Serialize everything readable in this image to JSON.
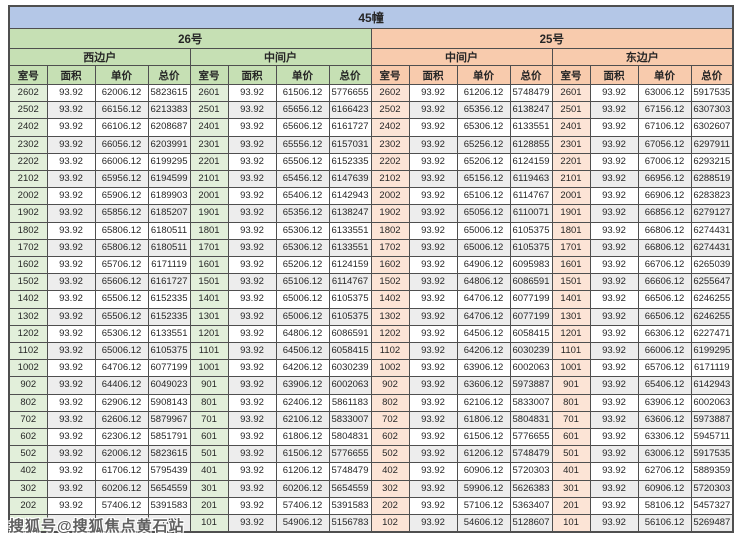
{
  "page": {
    "title": "45幢"
  },
  "watermark": {
    "text": "搜狐号@搜狐焦点黄石站"
  },
  "colors": {
    "title_bg": "#b4c7e7",
    "green_header": "#c6e0b4",
    "peach_header": "#f8cbad",
    "green_room": "#e2efda",
    "peach_room": "#fce4d6",
    "zebra": "#ededed",
    "border": "#4f4f4f"
  },
  "table": {
    "columns": [
      "室号",
      "面积",
      "单价",
      "总价"
    ],
    "groups": [
      {
        "label": "26号",
        "header_bg": "#c6e0b4",
        "room_bg": "#e2efda",
        "units": [
          {
            "label": "西边户",
            "rows": [
              [
                "2602",
                "93.92",
                "62006.12",
                "5823615"
              ],
              [
                "2502",
                "93.92",
                "66156.12",
                "6213383"
              ],
              [
                "2402",
                "93.92",
                "66106.12",
                "6208687"
              ],
              [
                "2302",
                "93.92",
                "66056.12",
                "6203991"
              ],
              [
                "2202",
                "93.92",
                "66006.12",
                "6199295"
              ],
              [
                "2102",
                "93.92",
                "65956.12",
                "6194599"
              ],
              [
                "2002",
                "93.92",
                "65906.12",
                "6189903"
              ],
              [
                "1902",
                "93.92",
                "65856.12",
                "6185207"
              ],
              [
                "1802",
                "93.92",
                "65806.12",
                "6180511"
              ],
              [
                "1702",
                "93.92",
                "65806.12",
                "6180511"
              ],
              [
                "1602",
                "93.92",
                "65706.12",
                "6171119"
              ],
              [
                "1502",
                "93.92",
                "65606.12",
                "6161727"
              ],
              [
                "1402",
                "93.92",
                "65506.12",
                "6152335"
              ],
              [
                "1302",
                "93.92",
                "65506.12",
                "6152335"
              ],
              [
                "1202",
                "93.92",
                "65306.12",
                "6133551"
              ],
              [
                "1102",
                "93.92",
                "65006.12",
                "6105375"
              ],
              [
                "1002",
                "93.92",
                "64706.12",
                "6077199"
              ],
              [
                "902",
                "93.92",
                "64406.12",
                "6049023"
              ],
              [
                "802",
                "93.92",
                "62906.12",
                "5908143"
              ],
              [
                "702",
                "93.92",
                "62606.12",
                "5879967"
              ],
              [
                "602",
                "93.92",
                "62306.12",
                "5851791"
              ],
              [
                "502",
                "93.92",
                "62006.12",
                "5823615"
              ],
              [
                "402",
                "93.92",
                "61706.12",
                "5795439"
              ],
              [
                "302",
                "93.92",
                "60206.12",
                "5654559"
              ],
              [
                "202",
                "93.92",
                "57406.12",
                "5391583"
              ],
              [
                "",
                "",
                "",
                "743"
              ]
            ]
          },
          {
            "label": "中间户",
            "rows": [
              [
                "2601",
                "93.92",
                "61506.12",
                "5776655"
              ],
              [
                "2501",
                "93.92",
                "65656.12",
                "6166423"
              ],
              [
                "2401",
                "93.92",
                "65606.12",
                "6161727"
              ],
              [
                "2301",
                "93.92",
                "65556.12",
                "6157031"
              ],
              [
                "2201",
                "93.92",
                "65506.12",
                "6152335"
              ],
              [
                "2101",
                "93.92",
                "65456.12",
                "6147639"
              ],
              [
                "2001",
                "93.92",
                "65406.12",
                "6142943"
              ],
              [
                "1901",
                "93.92",
                "65356.12",
                "6138247"
              ],
              [
                "1801",
                "93.92",
                "65306.12",
                "6133551"
              ],
              [
                "1701",
                "93.92",
                "65306.12",
                "6133551"
              ],
              [
                "1601",
                "93.92",
                "65206.12",
                "6124159"
              ],
              [
                "1501",
                "93.92",
                "65106.12",
                "6114767"
              ],
              [
                "1401",
                "93.92",
                "65006.12",
                "6105375"
              ],
              [
                "1301",
                "93.92",
                "65006.12",
                "6105375"
              ],
              [
                "1201",
                "93.92",
                "64806.12",
                "6086591"
              ],
              [
                "1101",
                "93.92",
                "64506.12",
                "6058415"
              ],
              [
                "1001",
                "93.92",
                "64206.12",
                "6030239"
              ],
              [
                "901",
                "93.92",
                "63906.12",
                "6002063"
              ],
              [
                "801",
                "93.92",
                "62406.12",
                "5861183"
              ],
              [
                "701",
                "93.92",
                "62106.12",
                "5833007"
              ],
              [
                "601",
                "93.92",
                "61806.12",
                "5804831"
              ],
              [
                "501",
                "93.92",
                "61506.12",
                "5776655"
              ],
              [
                "401",
                "93.92",
                "61206.12",
                "5748479"
              ],
              [
                "301",
                "93.92",
                "60206.12",
                "5654559"
              ],
              [
                "201",
                "93.92",
                "57406.12",
                "5391583"
              ],
              [
                "101",
                "93.92",
                "54906.12",
                "5156783"
              ]
            ]
          }
        ]
      },
      {
        "label": "25号",
        "header_bg": "#f8cbad",
        "room_bg": "#fce4d6",
        "units": [
          {
            "label": "中间户",
            "rows": [
              [
                "2602",
                "93.92",
                "61206.12",
                "5748479"
              ],
              [
                "2502",
                "93.92",
                "65356.12",
                "6138247"
              ],
              [
                "2402",
                "93.92",
                "65306.12",
                "6133551"
              ],
              [
                "2302",
                "93.92",
                "65256.12",
                "6128855"
              ],
              [
                "2202",
                "93.92",
                "65206.12",
                "6124159"
              ],
              [
                "2102",
                "93.92",
                "65156.12",
                "6119463"
              ],
              [
                "2002",
                "93.92",
                "65106.12",
                "6114767"
              ],
              [
                "1902",
                "93.92",
                "65056.12",
                "6110071"
              ],
              [
                "1802",
                "93.92",
                "65006.12",
                "6105375"
              ],
              [
                "1702",
                "93.92",
                "65006.12",
                "6105375"
              ],
              [
                "1602",
                "93.92",
                "64906.12",
                "6095983"
              ],
              [
                "1502",
                "93.92",
                "64806.12",
                "6086591"
              ],
              [
                "1402",
                "93.92",
                "64706.12",
                "6077199"
              ],
              [
                "1302",
                "93.92",
                "64706.12",
                "6077199"
              ],
              [
                "1202",
                "93.92",
                "64506.12",
                "6058415"
              ],
              [
                "1102",
                "93.92",
                "64206.12",
                "6030239"
              ],
              [
                "1002",
                "93.92",
                "63906.12",
                "6002063"
              ],
              [
                "902",
                "93.92",
                "63606.12",
                "5973887"
              ],
              [
                "802",
                "93.92",
                "62106.12",
                "5833007"
              ],
              [
                "702",
                "93.92",
                "61806.12",
                "5804831"
              ],
              [
                "602",
                "93.92",
                "61506.12",
                "5776655"
              ],
              [
                "502",
                "93.92",
                "61206.12",
                "5748479"
              ],
              [
                "402",
                "93.92",
                "60906.12",
                "5720303"
              ],
              [
                "302",
                "93.92",
                "59906.12",
                "5626383"
              ],
              [
                "202",
                "93.92",
                "57106.12",
                "5363407"
              ],
              [
                "102",
                "93.92",
                "54606.12",
                "5128607"
              ]
            ]
          },
          {
            "label": "东边户",
            "rows": [
              [
                "2601",
                "93.92",
                "63006.12",
                "5917535"
              ],
              [
                "2501",
                "93.92",
                "67156.12",
                "6307303"
              ],
              [
                "2401",
                "93.92",
                "67106.12",
                "6302607"
              ],
              [
                "2301",
                "93.92",
                "67056.12",
                "6297911"
              ],
              [
                "2201",
                "93.92",
                "67006.12",
                "6293215"
              ],
              [
                "2101",
                "93.92",
                "66956.12",
                "6288519"
              ],
              [
                "2001",
                "93.92",
                "66906.12",
                "6283823"
              ],
              [
                "1901",
                "93.92",
                "66856.12",
                "6279127"
              ],
              [
                "1801",
                "93.92",
                "66806.12",
                "6274431"
              ],
              [
                "1701",
                "93.92",
                "66806.12",
                "6274431"
              ],
              [
                "1601",
                "93.92",
                "66706.12",
                "6265039"
              ],
              [
                "1501",
                "93.92",
                "66606.12",
                "6255647"
              ],
              [
                "1401",
                "93.92",
                "66506.12",
                "6246255"
              ],
              [
                "1301",
                "93.92",
                "66506.12",
                "6246255"
              ],
              [
                "1201",
                "93.92",
                "66306.12",
                "6227471"
              ],
              [
                "1101",
                "93.92",
                "66006.12",
                "6199295"
              ],
              [
                "1001",
                "93.92",
                "65706.12",
                "6171119"
              ],
              [
                "901",
                "93.92",
                "65406.12",
                "6142943"
              ],
              [
                "801",
                "93.92",
                "63906.12",
                "6002063"
              ],
              [
                "701",
                "93.92",
                "63606.12",
                "5973887"
              ],
              [
                "601",
                "93.92",
                "63306.12",
                "5945711"
              ],
              [
                "501",
                "93.92",
                "63006.12",
                "5917535"
              ],
              [
                "401",
                "93.92",
                "62706.12",
                "5889359"
              ],
              [
                "301",
                "93.92",
                "60906.12",
                "5720303"
              ],
              [
                "201",
                "93.92",
                "58106.12",
                "5457327"
              ],
              [
                "101",
                "93.92",
                "56106.12",
                "5269487"
              ]
            ]
          }
        ]
      }
    ]
  }
}
